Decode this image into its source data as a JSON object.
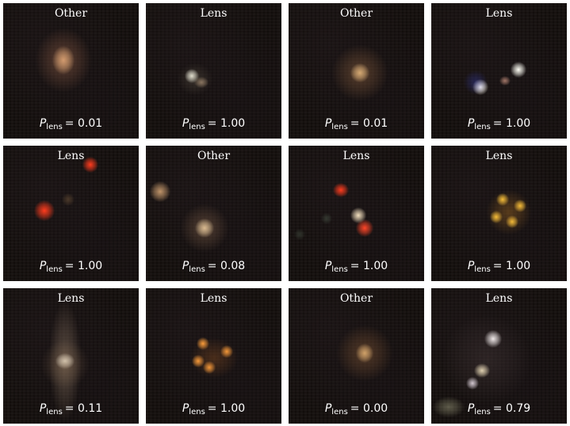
{
  "tiles": [
    {
      "label": "Other",
      "p_symbol": "P",
      "p_sub": "lens",
      "p_eq": "= 0.01"
    },
    {
      "label": "Lens",
      "p_symbol": "P",
      "p_sub": "lens",
      "p_eq": "= 1.00"
    },
    {
      "label": "Other",
      "p_symbol": "P",
      "p_sub": "lens",
      "p_eq": "= 0.01"
    },
    {
      "label": "Lens",
      "p_symbol": "P",
      "p_sub": "lens",
      "p_eq": "= 1.00"
    },
    {
      "label": "Lens",
      "p_symbol": "P",
      "p_sub": "lens",
      "p_eq": "= 1.00"
    },
    {
      "label": "Other",
      "p_symbol": "P",
      "p_sub": "lens",
      "p_eq": "= 0.08"
    },
    {
      "label": "Lens",
      "p_symbol": "P",
      "p_sub": "lens",
      "p_eq": "= 1.00"
    },
    {
      "label": "Lens",
      "p_symbol": "P",
      "p_sub": "lens",
      "p_eq": "= 1.00"
    },
    {
      "label": "Lens",
      "p_symbol": "P",
      "p_sub": "lens",
      "p_eq": "= 0.11"
    },
    {
      "label": "Lens",
      "p_symbol": "P",
      "p_sub": "lens",
      "p_eq": "= 1.00"
    },
    {
      "label": "Other",
      "p_symbol": "P",
      "p_sub": "lens",
      "p_eq": "= 0.00"
    },
    {
      "label": "Lens",
      "p_symbol": "P",
      "p_sub": "lens",
      "p_eq": "= 0.79"
    }
  ]
}
